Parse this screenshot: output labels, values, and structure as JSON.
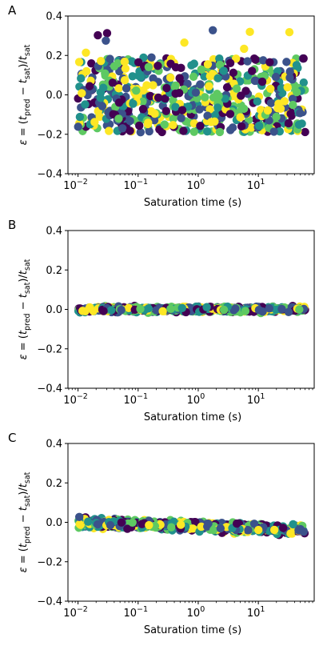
{
  "colormap": [
    "#440154",
    "#3b528b",
    "#21918c",
    "#5ec962",
    "#fde725"
  ],
  "chart_data": [
    {
      "type": "scatter",
      "panel_label": "A",
      "xlabel": "Saturation time (s)",
      "ylabel": "ε = (t_pred − t_sat)/t_sat",
      "xscale": "log",
      "xlim": [
        0.0068,
        85
      ],
      "ylim": [
        -0.4,
        0.4
      ],
      "yticks": [
        "−0.4",
        "−0.2",
        "0.0",
        "0.2",
        "0.4"
      ],
      "xticks": [
        {
          "base": "10",
          "exp": "−2"
        },
        {
          "base": "10",
          "exp": "−1"
        },
        {
          "base": "10",
          "exp": "0"
        },
        {
          "base": "10",
          "exp": "1"
        }
      ],
      "points": {
        "count": 620,
        "x_range": [
          0.01,
          60
        ],
        "mean": 0.0,
        "spread": 0.2,
        "trend": 0.0
      }
    },
    {
      "type": "scatter",
      "panel_label": "B",
      "xlabel": "Saturation time (s)",
      "ylabel": "ε = (t_pred − t_sat)/t_sat",
      "xscale": "log",
      "xlim": [
        0.0068,
        85
      ],
      "ylim": [
        -0.4,
        0.4
      ],
      "yticks": [
        "−0.4",
        "−0.2",
        "0.0",
        "0.2",
        "0.4"
      ],
      "xticks": [
        {
          "base": "10",
          "exp": "−2"
        },
        {
          "base": "10",
          "exp": "−1"
        },
        {
          "base": "10",
          "exp": "0"
        },
        {
          "base": "10",
          "exp": "1"
        }
      ],
      "points": {
        "count": 620,
        "x_range": [
          0.01,
          60
        ],
        "mean": 0.0,
        "spread": 0.02,
        "trend": 0.0
      }
    },
    {
      "type": "scatter",
      "panel_label": "C",
      "xlabel": "Saturation time (s)",
      "ylabel": "ε = (t_pred − t_sat)/t_sat",
      "xscale": "log",
      "xlim": [
        0.0068,
        85
      ],
      "ylim": [
        -0.4,
        0.4
      ],
      "yticks": [
        "−0.4",
        "−0.2",
        "0.0",
        "0.2",
        "0.4"
      ],
      "xticks": [
        {
          "base": "10",
          "exp": "−2"
        },
        {
          "base": "10",
          "exp": "−1"
        },
        {
          "base": "10",
          "exp": "0"
        },
        {
          "base": "10",
          "exp": "1"
        }
      ],
      "points": {
        "count": 620,
        "x_range": [
          0.01,
          60
        ],
        "mean": 0.0,
        "spread": 0.035,
        "trend": -0.04
      }
    }
  ]
}
